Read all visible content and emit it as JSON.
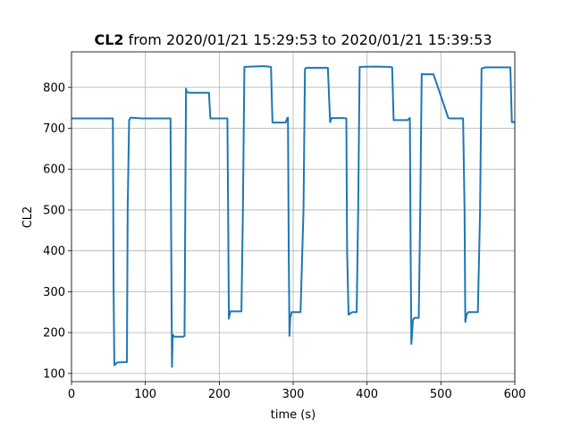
{
  "chart_data": {
    "type": "line",
    "title": {
      "bold": "CL2",
      "rest": " from 2020/01/21 15:29:53 to 2020/01/21 15:39:53"
    },
    "xlabel": "time (s)",
    "ylabel": "CL2",
    "xlim": [
      0,
      600
    ],
    "ylim": [
      80,
      887
    ],
    "x_ticks": [
      0,
      100,
      200,
      300,
      400,
      500,
      600
    ],
    "y_ticks": [
      100,
      200,
      300,
      400,
      500,
      600,
      700,
      800
    ],
    "grid": true,
    "legend": "none",
    "series": [
      {
        "color": "#1f77b4",
        "x": [
          0,
          56,
          57,
          58,
          62,
          63,
          75,
          76,
          78,
          80,
          95,
          130,
          134,
          135,
          136,
          137,
          139,
          140,
          150,
          151,
          153,
          154,
          155,
          156,
          160,
          173,
          186,
          188,
          190,
          206,
          211,
          212,
          213,
          215,
          230,
          232,
          234,
          260,
          270,
          272,
          290,
          292,
          293,
          294,
          295,
          296,
          298,
          300,
          310,
          314,
          316,
          318,
          330,
          347,
          350,
          352,
          368,
          372,
          373,
          375,
          380,
          386,
          388,
          390,
          410,
          430,
          434,
          436,
          455,
          458,
          459,
          460,
          461,
          462,
          464,
          470,
          472,
          474,
          476,
          480,
          490,
          510,
          512,
          530,
          532,
          533,
          535,
          537,
          540,
          550,
          553,
          555,
          560,
          575,
          594,
          596,
          600
        ],
        "y": [
          724,
          724,
          300,
          120,
          127,
          127,
          128,
          500,
          720,
          726,
          724,
          724,
          724,
          400,
          116,
          195,
          190,
          190,
          190,
          190,
          192,
          500,
          797,
          788,
          787,
          787,
          787,
          724,
          724,
          724,
          724,
          500,
          234,
          252,
          252,
          500,
          850,
          852,
          850,
          714,
          714,
          725,
          726,
          400,
          192,
          235,
          250,
          250,
          250,
          500,
          845,
          848,
          848,
          848,
          715,
          725,
          725,
          724,
          400,
          244,
          250,
          250,
          500,
          850,
          851,
          850,
          849,
          720,
          720,
          725,
          400,
          172,
          198,
          230,
          236,
          236,
          500,
          833,
          832,
          832,
          832,
          725,
          724,
          724,
          500,
          226,
          245,
          250,
          250,
          250,
          500,
          846,
          849,
          849,
          849,
          715,
          715
        ]
      }
    ]
  }
}
